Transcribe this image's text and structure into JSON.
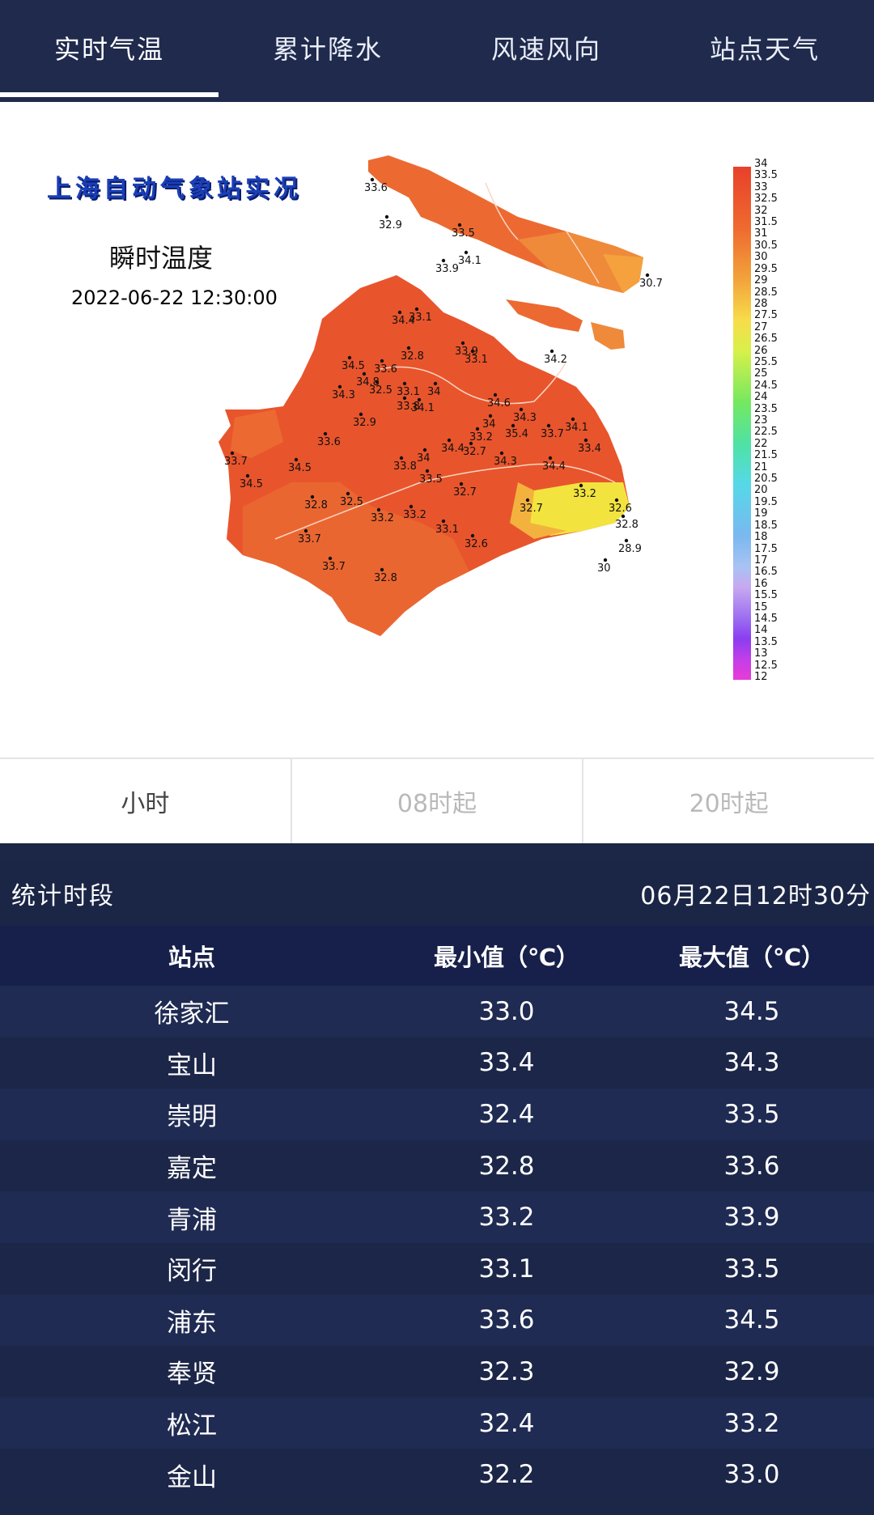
{
  "tabs": [
    {
      "label": "实时气温",
      "active": true
    },
    {
      "label": "累计降水",
      "active": false
    },
    {
      "label": "风速风向",
      "active": false
    },
    {
      "label": "站点天气",
      "active": false
    }
  ],
  "map": {
    "title": "上海自动气象站实况",
    "subtitle": "瞬时温度",
    "time": "2022-06-22 12:30:00",
    "legend_labels": [
      "34",
      "33.5",
      "33",
      "32.5",
      "32",
      "31.5",
      "31",
      "30.5",
      "30",
      "29.5",
      "29",
      "28.5",
      "28",
      "27.5",
      "27",
      "26.5",
      "26",
      "25.5",
      "25",
      "24.5",
      "24",
      "23.5",
      "23",
      "22.5",
      "22",
      "21.5",
      "21",
      "20.5",
      "20",
      "19.5",
      "19",
      "18.5",
      "18",
      "17.5",
      "17",
      "16.5",
      "16",
      "15.5",
      "15",
      "14.5",
      "14",
      "13.5",
      "13",
      "12.5",
      "12"
    ],
    "stations": [
      "33.6",
      "32.9",
      "33.5",
      "33.9",
      "34.1",
      "30.7",
      "34.4",
      "33.1",
      "34.5",
      "33.6",
      "32.8",
      "33.9",
      "33.1",
      "34.2",
      "34.8",
      "32.5",
      "33.1",
      "34",
      "34.3",
      "33.8",
      "34.1",
      "34.6",
      "34.3",
      "32.9",
      "34",
      "35.4",
      "33.7",
      "34.1",
      "33.6",
      "34.4",
      "33.2",
      "33.4",
      "33.7",
      "34",
      "32.7",
      "34.3",
      "34.4",
      "34.5",
      "33.8",
      "33.5",
      "34.5",
      "32.8",
      "32.5",
      "33.2",
      "32.7",
      "32.7",
      "33.2",
      "32.6",
      "33.7",
      "33.2",
      "33.1",
      "32.8",
      "32.6",
      "28.9",
      "33.7",
      "30",
      "32.8"
    ]
  },
  "period": {
    "options": [
      "小时",
      "08时起",
      "20时起"
    ],
    "active_index": 0
  },
  "stats": {
    "label": "统计时段",
    "value": "06月22日12时30分"
  },
  "table": {
    "headers": [
      "站点",
      "最小值（℃）",
      "最大值（℃）"
    ],
    "rows": [
      [
        "徐家汇",
        "33.0",
        "34.5"
      ],
      [
        "宝山",
        "33.4",
        "34.3"
      ],
      [
        "崇明",
        "32.4",
        "33.5"
      ],
      [
        "嘉定",
        "32.8",
        "33.6"
      ],
      [
        "青浦",
        "33.2",
        "33.9"
      ],
      [
        "闵行",
        "33.1",
        "33.5"
      ],
      [
        "浦东",
        "33.6",
        "34.5"
      ],
      [
        "奉贤",
        "32.3",
        "32.9"
      ],
      [
        "松江",
        "32.4",
        "33.2"
      ],
      [
        "金山",
        "32.2",
        "33.0"
      ]
    ]
  }
}
